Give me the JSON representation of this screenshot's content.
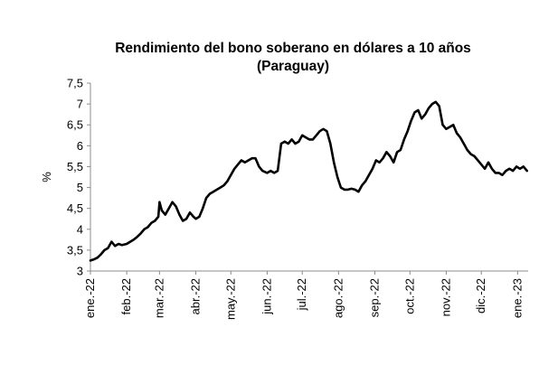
{
  "chart_data": {
    "type": "line",
    "title": "Rendimiento del bono soberano en dólares a 10 años",
    "subtitle": "(Paraguay)",
    "xlabel": "",
    "ylabel": "%",
    "ylim": [
      3,
      7.5
    ],
    "yticks": [
      "3",
      "3,5",
      "4",
      "4,5",
      "5",
      "5,5",
      "6",
      "6,5",
      "7",
      "7,5"
    ],
    "grid": false,
    "legend": "none",
    "xlim": [
      "2022-01-01",
      "2023-01-10"
    ],
    "xticks": [
      {
        "date": "2022-01-01",
        "label": "ene.-22"
      },
      {
        "date": "2022-02-01",
        "label": "feb.-22"
      },
      {
        "date": "2022-03-01",
        "label": "mar.-22"
      },
      {
        "date": "2022-04-01",
        "label": "abr.-22"
      },
      {
        "date": "2022-05-01",
        "label": "may.-22"
      },
      {
        "date": "2022-06-01",
        "label": "jun.-22"
      },
      {
        "date": "2022-07-01",
        "label": "jul.-22"
      },
      {
        "date": "2022-08-01",
        "label": "ago.-22"
      },
      {
        "date": "2022-09-01",
        "label": "sep.-22"
      },
      {
        "date": "2022-10-01",
        "label": "oct.-22"
      },
      {
        "date": "2022-11-01",
        "label": "nov.-22"
      },
      {
        "date": "2022-12-01",
        "label": "dic.-22"
      },
      {
        "date": "2023-01-01",
        "label": "ene.-23"
      }
    ],
    "series": [
      {
        "color": "#000000",
        "x": [
          "2022-01-01",
          "2022-01-04",
          "2022-01-07",
          "2022-01-10",
          "2022-01-13",
          "2022-01-16",
          "2022-01-19",
          "2022-01-22",
          "2022-01-25",
          "2022-01-28",
          "2022-02-01",
          "2022-02-04",
          "2022-02-07",
          "2022-02-10",
          "2022-02-13",
          "2022-02-16",
          "2022-02-19",
          "2022-02-22",
          "2022-02-25",
          "2022-02-28",
          "2022-03-01",
          "2022-03-03",
          "2022-03-06",
          "2022-03-09",
          "2022-03-12",
          "2022-03-15",
          "2022-03-18",
          "2022-03-21",
          "2022-03-24",
          "2022-03-27",
          "2022-03-30",
          "2022-04-01",
          "2022-04-04",
          "2022-04-07",
          "2022-04-10",
          "2022-04-13",
          "2022-04-16",
          "2022-04-19",
          "2022-04-22",
          "2022-04-25",
          "2022-04-28",
          "2022-05-01",
          "2022-05-04",
          "2022-05-07",
          "2022-05-10",
          "2022-05-13",
          "2022-05-16",
          "2022-05-19",
          "2022-05-22",
          "2022-05-25",
          "2022-05-28",
          "2022-06-01",
          "2022-06-04",
          "2022-06-07",
          "2022-06-10",
          "2022-06-13",
          "2022-06-16",
          "2022-06-19",
          "2022-06-22",
          "2022-06-25",
          "2022-06-28",
          "2022-07-01",
          "2022-07-04",
          "2022-07-07",
          "2022-07-10",
          "2022-07-13",
          "2022-07-16",
          "2022-07-19",
          "2022-07-22",
          "2022-07-25",
          "2022-07-28",
          "2022-07-31",
          "2022-08-03",
          "2022-08-06",
          "2022-08-09",
          "2022-08-12",
          "2022-08-15",
          "2022-08-18",
          "2022-08-21",
          "2022-08-24",
          "2022-08-27",
          "2022-08-30",
          "2022-09-02",
          "2022-09-05",
          "2022-09-08",
          "2022-09-11",
          "2022-09-14",
          "2022-09-17",
          "2022-09-20",
          "2022-09-23",
          "2022-09-26",
          "2022-09-29",
          "2022-10-02",
          "2022-10-05",
          "2022-10-08",
          "2022-10-11",
          "2022-10-14",
          "2022-10-17",
          "2022-10-20",
          "2022-10-23",
          "2022-10-26",
          "2022-10-29",
          "2022-11-01",
          "2022-11-04",
          "2022-11-07",
          "2022-11-10",
          "2022-11-13",
          "2022-11-16",
          "2022-11-19",
          "2022-11-22",
          "2022-11-25",
          "2022-11-28",
          "2022-12-01",
          "2022-12-04",
          "2022-12-07",
          "2022-12-10",
          "2022-12-13",
          "2022-12-16",
          "2022-12-19",
          "2022-12-22",
          "2022-12-25",
          "2022-12-28",
          "2022-12-31",
          "2023-01-03",
          "2023-01-06",
          "2023-01-09"
        ],
        "values": [
          3.25,
          3.28,
          3.32,
          3.4,
          3.5,
          3.55,
          3.7,
          3.6,
          3.65,
          3.62,
          3.65,
          3.7,
          3.75,
          3.82,
          3.9,
          4.0,
          4.05,
          4.15,
          4.2,
          4.3,
          4.65,
          4.45,
          4.35,
          4.5,
          4.65,
          4.55,
          4.35,
          4.2,
          4.25,
          4.4,
          4.3,
          4.25,
          4.3,
          4.5,
          4.75,
          4.85,
          4.9,
          4.95,
          5.0,
          5.05,
          5.15,
          5.3,
          5.45,
          5.55,
          5.65,
          5.6,
          5.65,
          5.7,
          5.7,
          5.5,
          5.4,
          5.35,
          5.4,
          5.35,
          5.4,
          6.05,
          6.1,
          6.05,
          6.15,
          6.05,
          6.1,
          6.25,
          6.2,
          6.15,
          6.15,
          6.25,
          6.35,
          6.4,
          6.35,
          6.05,
          5.6,
          5.25,
          5.0,
          4.95,
          4.95,
          4.97,
          4.95,
          4.9,
          5.05,
          5.15,
          5.3,
          5.45,
          5.65,
          5.6,
          5.7,
          5.85,
          5.75,
          5.6,
          5.85,
          5.9,
          6.15,
          6.35,
          6.6,
          6.8,
          6.85,
          6.65,
          6.75,
          6.9,
          7.0,
          7.05,
          6.95,
          6.5,
          6.4,
          6.45,
          6.5,
          6.3,
          6.2,
          6.05,
          5.9,
          5.8,
          5.75,
          5.65,
          5.55,
          5.45,
          5.6,
          5.45,
          5.35,
          5.35,
          5.3,
          5.4,
          5.45,
          5.4,
          5.5,
          5.45,
          5.5,
          5.4
        ]
      }
    ]
  }
}
